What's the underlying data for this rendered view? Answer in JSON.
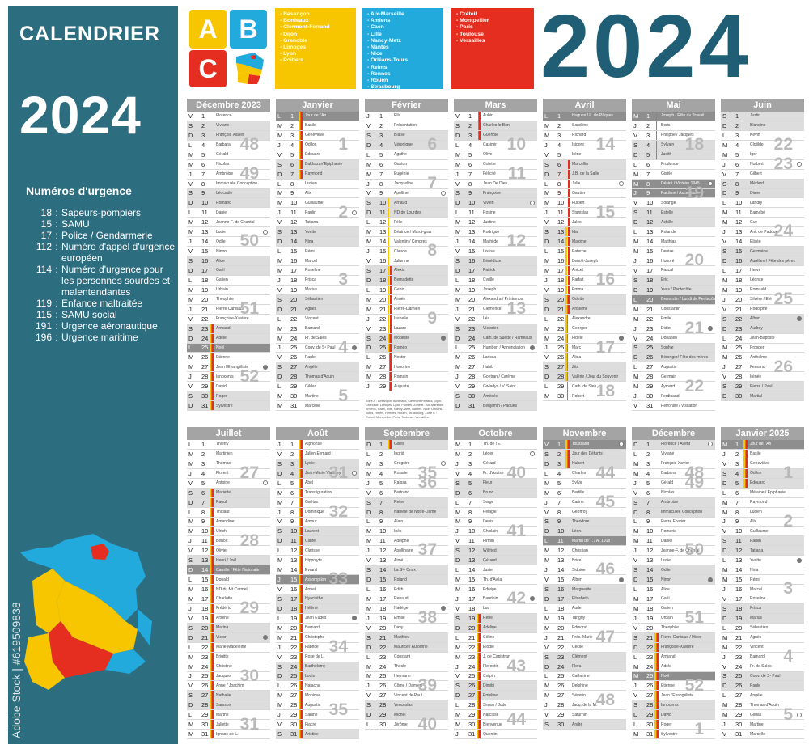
{
  "sidebar": {
    "label": "CALENDRIER",
    "year": "2024",
    "emergency_title": "Numéros d'urgence",
    "emergency": [
      {
        "num": "18",
        "label": "Sapeurs-pompiers"
      },
      {
        "num": "15",
        "label": "SAMU"
      },
      {
        "num": "17",
        "label": "Police / Gendarmerie"
      },
      {
        "num": "112",
        "label": "Numéro d'appel d'urgence européen"
      },
      {
        "num": "114",
        "label": "Numéro d'urgence pour les personnes sourdes et malentendantes"
      },
      {
        "num": "119",
        "label": "Enfance maltraitée"
      },
      {
        "num": "115",
        "label": "SAMU social"
      },
      {
        "num": "191",
        "label": "Urgence aéronautique"
      },
      {
        "num": "196",
        "label": "Urgence maritime"
      }
    ],
    "watermark": "Adobe Stock | #619509838"
  },
  "header": {
    "year": "2024",
    "abc": [
      "A",
      "B",
      "C"
    ],
    "zones": {
      "A": [
        "- Besançon",
        "- Bordeaux",
        "- Clermont-Ferrand",
        "- Dijon",
        "- Grenoble",
        "- Limoges",
        "- Lyon",
        "- Poitiers"
      ],
      "B": [
        "- Aix-Marseille",
        "- Amiens",
        "- Caen",
        "- Lille",
        "- Nancy-Metz",
        "- Nantes",
        "- Nice",
        "- Orléans-Tours",
        "- Reims",
        "- Rennes",
        "- Rouen",
        "- Strasbourg"
      ],
      "C": [
        "- Créteil",
        "- Montpellier",
        "- Paris",
        "- Toulouse",
        "- Versailles"
      ]
    }
  },
  "colors": {
    "zone_a": "#f7c600",
    "zone_b": "#22aadd",
    "zone_c": "#e52e1f",
    "accent": "#2c6d80"
  },
  "legend_note": "Zone A : Besançon, Bordeaux, Clermont-Ferrand, Dijon, Grenoble, Limoges, Lyon, Poitiers. Zone B : Aix-Marseille, Amiens, Caen, Lille, Nancy-Metz, Nantes, Nice, Orléans-Tours, Reims, Rennes, Rouen, Strasbourg. Zone C : Créteil, Montpellier, Paris, Toulouse, Versailles.",
  "months": [
    {
      "name": "Décembre 2023",
      "days": 31,
      "first": 4,
      "weeks": [
        48,
        49,
        50,
        51,
        52
      ],
      "holidays": [
        25
      ],
      "fm": 27,
      "nm": 13,
      "vacA": [
        [
          23,
          31
        ]
      ],
      "vacB": [
        [
          23,
          31
        ]
      ],
      "vacC": [
        [
          23,
          31
        ]
      ],
      "saints": [
        "Florence",
        "Viviane",
        "François Xavier",
        "Barbara",
        "Gérald",
        "Nicolas",
        "Ambroise",
        "Immaculée Conception",
        "Léocadie",
        "Romaric",
        "Daniel",
        "Jeanne-F. de Chantal",
        "Lucie",
        "Odile",
        "Ninon",
        "Alice",
        "Gaël",
        "Gatien",
        "Urbain",
        "Théophile",
        "Pierre Canisius",
        "Françoise-Xavière",
        "Armand",
        "Adèle",
        "Noël",
        "Etienne",
        "Jean l'Evangéliste",
        "Innocents",
        "David",
        "Roger",
        "Sylvestre"
      ]
    },
    {
      "name": "Janvier",
      "days": 31,
      "first": 0,
      "weeks": [
        1,
        2,
        3,
        4,
        5
      ],
      "holidays": [
        1
      ],
      "fm": 25,
      "nm": 11,
      "vacA": [
        [
          1,
          7
        ]
      ],
      "vacB": [
        [
          1,
          7
        ]
      ],
      "vacC": [
        [
          1,
          7
        ]
      ],
      "saints": [
        "Jour de l'An",
        "Basile",
        "Geneviève",
        "Odilon",
        "Edouard",
        "Balthazar/ Epiphanie",
        "Raymond",
        "Lucien",
        "Alix",
        "Guillaume",
        "Paulin",
        "Tatiana",
        "Yvette",
        "Nina",
        "Rémi",
        "Marcel",
        "Roseline",
        "Prisca",
        "Marius",
        "Sébastien",
        "Agnès",
        "Vincent",
        "Barnard",
        "Fr. de Sales",
        "Conv. de S¹ Paul",
        "Paule",
        "Angèle",
        "Thomas d'Aquin",
        "Gildas",
        "Martine",
        "Marcelle"
      ]
    },
    {
      "name": "Février",
      "days": 29,
      "first": 3,
      "weeks": [
        6,
        7,
        8,
        9
      ],
      "holidays": [],
      "fm": 24,
      "nm": 9,
      "vacA": [
        [
          10,
          25
        ]
      ],
      "vacB": [
        [
          24,
          29
        ]
      ],
      "vacC": [
        [
          17,
          29
        ]
      ],
      "saints": [
        "Ella",
        "Présentation",
        "Blaise",
        "Véronique",
        "Agathe",
        "Gaston",
        "Eugénie",
        "Jacqueline",
        "Apolline",
        "Arnaud",
        "ND de Lourdes",
        "Félix",
        "Béatrice / Mardi-gras",
        "Valentin / Cendres",
        "Claude",
        "Julienne",
        "Alexis",
        "Bernadette",
        "Gabin",
        "Aimée",
        "Pierre-Damien",
        "Isabelle",
        "Lazare",
        "Modeste",
        "Roméo",
        "Nestor",
        "Honorine",
        "Romain",
        "Auguste"
      ]
    },
    {
      "name": "Mars",
      "days": 31,
      "first": 4,
      "weeks": [
        10,
        11,
        12,
        13
      ],
      "holidays": [],
      "fm": 25,
      "nm": 10,
      "vacA": [],
      "vacB": [
        [
          1,
          3
        ]
      ],
      "vacC": [
        [
          1,
          3
        ]
      ],
      "saints": [
        "Aubin",
        "Charles le Bon",
        "Guénolé",
        "Casimir",
        "Olive",
        "Colette",
        "Félicité",
        "Jean De Dieu",
        "Françoise",
        "Vivien",
        "Rosine",
        "Justine",
        "Rodrigue",
        "Mathilde",
        "Louise",
        "Bénédicte",
        "Patrick",
        "Cyrille",
        "Joseph",
        "Alexandra / Printemps",
        "Clémence",
        "Léa",
        "Victorien",
        "Cath. de Suède / Rameaux",
        "Humbert / Annonciation",
        "Larissa",
        "Habib",
        "Gontran / Carême",
        "Gwladys / V. Saint",
        "Amédée",
        "Benjamin / Pâques"
      ]
    },
    {
      "name": "Avril",
      "days": 30,
      "first": 0,
      "weeks": [
        14,
        15,
        16,
        17,
        18
      ],
      "holidays": [
        1
      ],
      "fm": 24,
      "nm": 8,
      "vacA": [
        [
          13,
          28
        ]
      ],
      "vacB": [
        [
          20,
          30
        ]
      ],
      "vacC": [
        [
          6,
          21
        ]
      ],
      "saints": [
        "Hugues / L. de Pâques",
        "Sandrine",
        "Richard",
        "Isidore",
        "Irène",
        "Marcellin",
        "J.B. de la Salle",
        "Julie",
        "Gautier",
        "Fulbert",
        "Stanislas",
        "Jules",
        "Ida",
        "Maxime",
        "Paterne",
        "Benoît-Joseph",
        "Anicet",
        "Parfait",
        "Emma",
        "Odette",
        "Anselme",
        "Alexandre",
        "Georges",
        "Fidèle",
        "Marc",
        "Alida",
        "Zita",
        "Valérie / Jour du Souvenir",
        "Cath. de Sien",
        "Robert"
      ]
    },
    {
      "name": "Mai",
      "days": 31,
      "first": 2,
      "weeks": [
        18,
        19,
        20,
        21,
        22
      ],
      "holidays": [
        1,
        8,
        9,
        20
      ],
      "fm": 23,
      "nm": 8,
      "vacA": [],
      "vacB": [
        [
          1,
          5
        ]
      ],
      "vacC": [],
      "saints": [
        "Joseph / Fête du Travail",
        "Boris",
        "Philippe / Jacques",
        "Sylvain",
        "Judith",
        "Prudence",
        "Gisèle",
        "Désiré / Victoire 1945",
        "Pacôme / Ascension",
        "Solange",
        "Estelle",
        "Achille",
        "Rolande",
        "Matthias",
        "Denise",
        "Honoré",
        "Pascal",
        "Eric",
        "Yves / Pentecôte",
        "Bernardin / Lundi de Pentecôte",
        "Constantin",
        "Emile",
        "Didier",
        "Donatien",
        "Sophie",
        "Bérenger/ Fête des mères",
        "Augustin",
        "Germain",
        "Aymard",
        "Ferdinand",
        "Pétronille / Visitation"
      ]
    },
    {
      "name": "Juin",
      "days": 30,
      "first": 5,
      "weeks": [
        22,
        23,
        24,
        25,
        26
      ],
      "holidays": [],
      "fm": 22,
      "nm": 6,
      "vacA": [],
      "vacB": [],
      "vacC": [],
      "saints": [
        "Justin",
        "Blandine",
        "Kévin",
        "Clotilde",
        "Igor",
        "Norbert",
        "Gilbert",
        "Médard",
        "Diane",
        "Landry",
        "Barnabé",
        "Guy",
        "Ant. de Padoue",
        "Elisée",
        "Germaine",
        "Aurélien / Fête des pères",
        "Hervé",
        "Léonce",
        "Romuald",
        "Silvère / Été",
        "Rodolphe",
        "Alban",
        "Audrey",
        "Jean-Baptiste",
        "Prosper",
        "Anthelme",
        "Fernand",
        "Irénée",
        "Pierre / Paul",
        "Martial"
      ]
    },
    {
      "name": "Juillet",
      "days": 31,
      "first": 0,
      "weeks": [
        27,
        28,
        29,
        30,
        31
      ],
      "holidays": [
        14
      ],
      "fm": 21,
      "nm": 5,
      "vacA": [
        [
          6,
          31
        ]
      ],
      "vacB": [
        [
          6,
          31
        ]
      ],
      "vacC": [
        [
          6,
          31
        ]
      ],
      "saints": [
        "Thierry",
        "Martinien",
        "Thomas",
        "Florent",
        "Antoine",
        "Mariette",
        "Raoul",
        "Thibaut",
        "Amandine",
        "Ulrich",
        "Benoît",
        "Olivier",
        "Henri / Joël",
        "Camille / Fête Nationale",
        "Donald",
        "ND du Mt Carmel",
        "Charlotte",
        "Frédéric",
        "Arsène",
        "Marina",
        "Victor",
        "Marie-Madeleine",
        "Brigitte",
        "Christine",
        "Jacques",
        "Anne / Joachim",
        "Nathalie",
        "Samson",
        "Marthe",
        "Juliette",
        "Ignace de L."
      ]
    },
    {
      "name": "Août",
      "days": 31,
      "first": 3,
      "weeks": [
        31,
        32,
        33,
        34,
        35
      ],
      "holidays": [
        15
      ],
      "fm": 19,
      "nm": 4,
      "vacA": [
        [
          1,
          31
        ]
      ],
      "vacB": [
        [
          1,
          31
        ]
      ],
      "vacC": [
        [
          1,
          31
        ]
      ],
      "saints": [
        "Alphonse",
        "Julien Eymard",
        "Lydie",
        "Jean-Marie Vianney",
        "Abel",
        "Transfiguration",
        "Gaétan",
        "Dominique",
        "Amour",
        "Laurent",
        "Claire",
        "Clarisse",
        "Hippolyte",
        "Evrard",
        "Assomption",
        "Armel",
        "Hyacinthe",
        "Hélène",
        "Jean Eudes",
        "Bernard",
        "Christophe",
        "Fabrice",
        "Rose de L.",
        "Barthélemy",
        "Louis",
        "Natacha",
        "Monique",
        "Augustin",
        "Sabine",
        "Fiacre",
        "Aristide"
      ]
    },
    {
      "name": "Septembre",
      "days": 30,
      "first": 6,
      "weeks": [
        35,
        36,
        37,
        38,
        39,
        40
      ],
      "holidays": [],
      "fm": 18,
      "nm": 3,
      "vacA": [
        [
          1,
          1
        ]
      ],
      "vacB": [
        [
          1,
          1
        ]
      ],
      "vacC": [
        [
          1,
          1
        ]
      ],
      "saints": [
        "Gilles",
        "Ingrid",
        "Grégoire",
        "Rosalie",
        "Raïssa",
        "Bertrand",
        "Reine",
        "Nativité de Notre-Dame",
        "Alain",
        "Inès",
        "Adelphe",
        "Apollinaire",
        "Aimé",
        "La S³ᵉ Croix",
        "Roland",
        "Edith",
        "Renaud",
        "Nadège",
        "Emilie",
        "Davy",
        "Matthieu",
        "Maurice / Automne",
        "Constant",
        "Thècle",
        "Hermann",
        "Côme / Damien",
        "Vincent de Paul",
        "Venceslas",
        "Michel",
        "Jérôme"
      ]
    },
    {
      "name": "Octobre",
      "days": 31,
      "first": 1,
      "weeks": [
        40,
        41,
        42,
        43,
        44
      ],
      "holidays": [],
      "fm": 17,
      "nm": 2,
      "vacA": [
        [
          19,
          31
        ]
      ],
      "vacB": [
        [
          19,
          31
        ]
      ],
      "vacC": [
        [
          19,
          31
        ]
      ],
      "saints": [
        "Th. de l'E.",
        "Léger",
        "Gérard",
        "Fr. d'Assise",
        "Fleur",
        "Bruno",
        "Serge",
        "Pélagie",
        "Denis",
        "Ghislain",
        "Firmin",
        "Wilfried",
        "Géraud",
        "Juste",
        "Th. d'Avila",
        "Edwige",
        "Baudoin",
        "Luc",
        "René",
        "Adeline",
        "Céline",
        "Elodie",
        "J. de Capistran",
        "Florentin",
        "Crépin",
        "Dimitri",
        "Emeline",
        "Simon / Jude",
        "Narcisse",
        "Bienvenue",
        "Quentin"
      ]
    },
    {
      "name": "Novembre",
      "days": 30,
      "first": 4,
      "weeks": [
        44,
        45,
        46,
        47,
        48
      ],
      "holidays": [
        1,
        11
      ],
      "fm": 15,
      "nm": 1,
      "vacA": [
        [
          1,
          3
        ]
      ],
      "vacB": [
        [
          1,
          3
        ]
      ],
      "vacC": [
        [
          1,
          3
        ]
      ],
      "saints": [
        "Toussaint",
        "Jour des Défunts",
        "Hubert",
        "Charles",
        "Sylvie",
        "Bertille",
        "Carine",
        "Geoffroy",
        "Théodore",
        "Léon",
        "Martin de T. / A. 1918",
        "Christian",
        "Brice",
        "Sidoine",
        "Albert",
        "Marguerite",
        "Elisabeth",
        "Aude",
        "Tanguy",
        "Edmond",
        "Prés. Marie",
        "Cécile",
        "Clément",
        "Flora",
        "Catherine",
        "Delphine",
        "Séverin",
        "Jacq. de la M.",
        "Saturnin",
        "André"
      ]
    },
    {
      "name": "Décembre",
      "days": 31,
      "first": 6,
      "weeks": [
        48,
        49,
        50,
        51,
        52,
        1
      ],
      "holidays": [
        25
      ],
      "fm": 15,
      "nm": 1,
      "vacA": [
        [
          21,
          31
        ]
      ],
      "vacB": [
        [
          21,
          31
        ]
      ],
      "vacC": [
        [
          21,
          31
        ]
      ],
      "saints": [
        "Florence / Avent",
        "Viviane",
        "François-Xavier",
        "Barbara",
        "Gérald",
        "Nicolas",
        "Ambroise",
        "Immaculée Conception",
        "Pierre Fourier",
        "Romaric",
        "Daniel",
        "Jeanne-F. de Chantal",
        "Lucie",
        "Odile",
        "Ninon",
        "Alice",
        "Gaël",
        "Gatien",
        "Urbain",
        "Théophile",
        "Pierre Canisius / Hiver",
        "Françoise-Xavière",
        "Armand",
        "Adèle",
        "Noël",
        "Etienne",
        "Jean l'Evangéliste",
        "Innocents",
        "David",
        "Roger",
        "Sylvestre"
      ]
    },
    {
      "name": "Janvier 2025",
      "days": 31,
      "first": 2,
      "weeks": [
        1,
        2,
        3,
        4,
        5
      ],
      "holidays": [
        1
      ],
      "fm": 13,
      "nm": 29,
      "vacA": [
        [
          1,
          5
        ]
      ],
      "vacB": [
        [
          1,
          5
        ]
      ],
      "vacC": [
        [
          1,
          5
        ]
      ],
      "saints": [
        "Jour de l'An",
        "Basile",
        "Geneviève",
        "Odilon",
        "Edouard",
        "Mélaine / Epiphanie",
        "Raymond",
        "Lucien",
        "Alix",
        "Guillaume",
        "Paulin",
        "Tatiana",
        "Yvette",
        "Nina",
        "Rémi",
        "Marcel",
        "Roseline",
        "Prisca",
        "Marius",
        "Sébastien",
        "Agnès",
        "Vincent",
        "Barnard",
        "Fr. de Sales",
        "Conv. de S¹ Paul",
        "Paule",
        "Angèle",
        "Thomas d'Aquin",
        "Gildas",
        "Martine",
        "Marcelle"
      ]
    }
  ],
  "weekday_letters": [
    "L",
    "M",
    "M",
    "J",
    "V",
    "S",
    "D"
  ]
}
